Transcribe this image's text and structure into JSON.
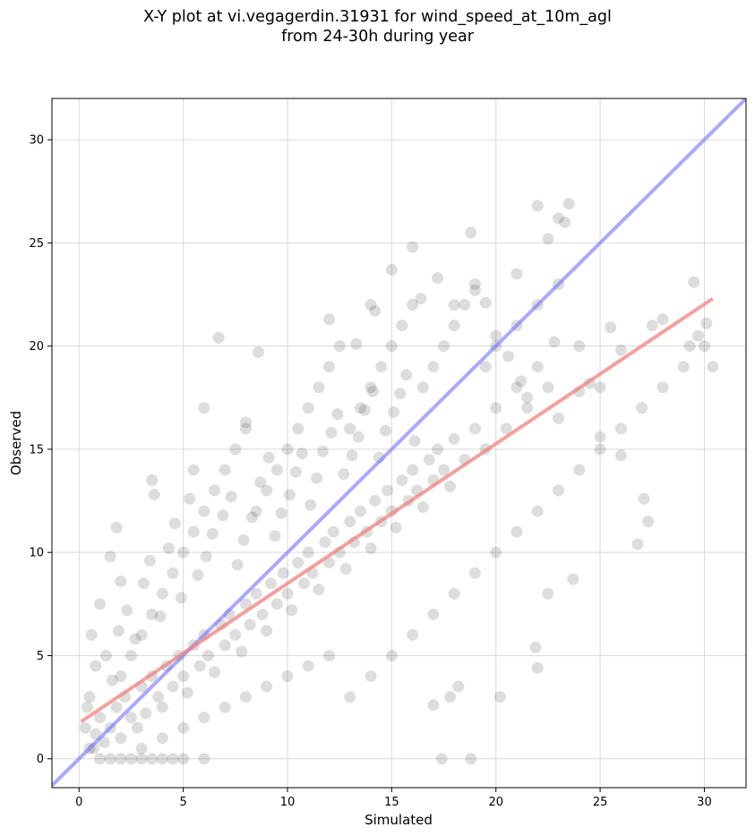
{
  "chart_data": {
    "type": "scatter",
    "title_line1": "X-Y plot at vi.vegagerdin.31931 for wind_speed_at_10m_agl",
    "title_line2": "from 24-30h during year",
    "xlabel": "Simulated",
    "ylabel": "Observed",
    "xlim": [
      -1.3,
      32
    ],
    "ylim": [
      -1.4,
      32
    ],
    "xticks": [
      0,
      5,
      10,
      15,
      20,
      25,
      30
    ],
    "yticks": [
      0,
      5,
      10,
      15,
      20,
      25,
      30
    ],
    "grid": true,
    "point_color": "#000000",
    "point_alpha": 0.06,
    "identity_line": {
      "x": [
        -1.3,
        32
      ],
      "y": [
        -1.3,
        32
      ],
      "color": "#7070ff"
    },
    "regression_line": {
      "x": [
        0.1,
        30.4
      ],
      "y": [
        1.8,
        22.3
      ],
      "color": "#f08080"
    },
    "series": [
      {
        "values": [
          [
            0.5,
            0.5
          ],
          [
            0.8,
            1.2
          ],
          [
            1.0,
            2.0
          ],
          [
            1.2,
            0.8
          ],
          [
            1.5,
            1.5
          ],
          [
            1.8,
            2.5
          ],
          [
            2.0,
            1.0
          ],
          [
            2.2,
            3.0
          ],
          [
            2.5,
            2.0
          ],
          [
            2.8,
            1.5
          ],
          [
            3.0,
            3.5
          ],
          [
            3.2,
            2.2
          ],
          [
            3.5,
            4.0
          ],
          [
            3.8,
            3.0
          ],
          [
            4.0,
            2.5
          ],
          [
            4.2,
            4.5
          ],
          [
            4.5,
            3.5
          ],
          [
            4.8,
            5.0
          ],
          [
            5.0,
            4.0
          ],
          [
            5.2,
            3.2
          ],
          [
            5.5,
            5.5
          ],
          [
            5.8,
            4.5
          ],
          [
            6.0,
            6.0
          ],
          [
            6.2,
            5.0
          ],
          [
            6.5,
            4.2
          ],
          [
            6.8,
            6.5
          ],
          [
            7.0,
            5.5
          ],
          [
            7.2,
            7.0
          ],
          [
            7.5,
            6.0
          ],
          [
            7.8,
            5.2
          ],
          [
            8.0,
            7.5
          ],
          [
            8.2,
            6.5
          ],
          [
            8.5,
            8.0
          ],
          [
            8.8,
            7.0
          ],
          [
            9.0,
            6.2
          ],
          [
            9.2,
            8.5
          ],
          [
            9.5,
            7.5
          ],
          [
            9.8,
            9.0
          ],
          [
            10.0,
            8.0
          ],
          [
            10.2,
            7.2
          ],
          [
            10.5,
            9.5
          ],
          [
            10.8,
            8.5
          ],
          [
            11.0,
            10.0
          ],
          [
            11.2,
            9.0
          ],
          [
            11.5,
            8.2
          ],
          [
            11.8,
            10.5
          ],
          [
            12.0,
            9.5
          ],
          [
            12.2,
            11.0
          ],
          [
            12.5,
            10.0
          ],
          [
            12.8,
            9.2
          ],
          [
            13.0,
            11.5
          ],
          [
            13.2,
            10.5
          ],
          [
            13.5,
            12.0
          ],
          [
            13.8,
            11.0
          ],
          [
            14.0,
            10.2
          ],
          [
            14.2,
            12.5
          ],
          [
            14.5,
            11.5
          ],
          [
            14.8,
            13.0
          ],
          [
            15.0,
            12.0
          ],
          [
            15.2,
            11.2
          ],
          [
            15.5,
            13.5
          ],
          [
            15.8,
            12.5
          ],
          [
            16.0,
            14.0
          ],
          [
            16.2,
            13.0
          ],
          [
            16.5,
            12.2
          ],
          [
            16.8,
            14.5
          ],
          [
            17.0,
            13.5
          ],
          [
            17.2,
            15.0
          ],
          [
            17.5,
            14.0
          ],
          [
            17.8,
            13.2
          ],
          [
            18.0,
            15.5
          ],
          [
            18.5,
            14.5
          ],
          [
            19.0,
            16.0
          ],
          [
            19.5,
            15.0
          ],
          [
            20.0,
            17.0
          ],
          [
            20.5,
            16.0
          ],
          [
            21.0,
            18.0
          ],
          [
            21.5,
            17.0
          ],
          [
            22.0,
            19.0
          ],
          [
            22.5,
            18.0
          ],
          [
            1.0,
            0.0
          ],
          [
            1.5,
            0.0
          ],
          [
            2.0,
            0.0
          ],
          [
            2.5,
            0.0
          ],
          [
            3.0,
            0.0
          ],
          [
            3.5,
            0.0
          ],
          [
            4.0,
            0.0
          ],
          [
            4.5,
            0.0
          ],
          [
            5.0,
            0.0
          ],
          [
            6.0,
            0.0
          ],
          [
            2.0,
            4.0
          ],
          [
            2.5,
            5.0
          ],
          [
            3.0,
            6.0
          ],
          [
            3.5,
            7.0
          ],
          [
            4.0,
            8.0
          ],
          [
            4.5,
            9.0
          ],
          [
            5.0,
            10.0
          ],
          [
            5.5,
            11.0
          ],
          [
            6.0,
            12.0
          ],
          [
            6.5,
            13.0
          ],
          [
            7.0,
            14.0
          ],
          [
            7.5,
            15.0
          ],
          [
            8.0,
            16.0
          ],
          [
            8.5,
            12.0
          ],
          [
            9.0,
            13.0
          ],
          [
            9.5,
            14.0
          ],
          [
            10.0,
            15.0
          ],
          [
            10.5,
            16.0
          ],
          [
            11.0,
            17.0
          ],
          [
            11.5,
            18.0
          ],
          [
            12.0,
            19.0
          ],
          [
            12.5,
            20.0
          ],
          [
            13.0,
            16.0
          ],
          [
            13.5,
            17.0
          ],
          [
            14.0,
            18.0
          ],
          [
            14.5,
            19.0
          ],
          [
            15.0,
            20.0
          ],
          [
            15.5,
            21.0
          ],
          [
            16.0,
            22.0
          ],
          [
            16.5,
            18.0
          ],
          [
            17.0,
            19.0
          ],
          [
            17.5,
            20.0
          ],
          [
            18.0,
            21.0
          ],
          [
            18.5,
            22.0
          ],
          [
            19.0,
            23.0
          ],
          [
            19.5,
            19.0
          ],
          [
            20.0,
            20.0
          ],
          [
            21.0,
            21.0
          ],
          [
            22.0,
            22.0
          ],
          [
            23.0,
            23.0
          ],
          [
            3.0,
            0.5
          ],
          [
            4.0,
            1.0
          ],
          [
            5.0,
            1.5
          ],
          [
            6.0,
            2.0
          ],
          [
            7.0,
            2.5
          ],
          [
            8.0,
            3.0
          ],
          [
            9.0,
            3.5
          ],
          [
            10.0,
            4.0
          ],
          [
            11.0,
            4.5
          ],
          [
            12.0,
            5.0
          ],
          [
            13.0,
            3.0
          ],
          [
            14.0,
            4.0
          ],
          [
            15.0,
            5.0
          ],
          [
            16.0,
            6.0
          ],
          [
            17.0,
            7.0
          ],
          [
            18.0,
            8.0
          ],
          [
            19.0,
            9.0
          ],
          [
            20.0,
            10.0
          ],
          [
            21.0,
            11.0
          ],
          [
            22.0,
            12.0
          ],
          [
            23.0,
            13.0
          ],
          [
            24.0,
            14.0
          ],
          [
            25.0,
            15.0
          ],
          [
            26.0,
            16.0
          ],
          [
            27.0,
            17.0
          ],
          [
            28.0,
            18.0
          ],
          [
            29.0,
            19.0
          ],
          [
            30.0,
            20.0
          ],
          [
            24.0,
            20.0
          ],
          [
            25.0,
            18.0
          ],
          [
            6.7,
            20.4
          ],
          [
            8.6,
            19.7
          ],
          [
            18.8,
            25.5
          ],
          [
            16.0,
            24.8
          ],
          [
            14.0,
            22.0
          ],
          [
            15.0,
            23.7
          ],
          [
            19.0,
            22.7
          ],
          [
            20.0,
            20.5
          ],
          [
            21.0,
            23.5
          ],
          [
            22.0,
            26.8
          ],
          [
            23.0,
            26.2
          ],
          [
            23.5,
            26.9
          ],
          [
            22.5,
            25.2
          ],
          [
            23.3,
            26.0
          ],
          [
            29.5,
            23.1
          ],
          [
            29.7,
            20.5
          ],
          [
            30.4,
            19.0
          ],
          [
            30.1,
            21.1
          ],
          [
            29.3,
            20.0
          ],
          [
            27.3,
            11.5
          ],
          [
            26.8,
            10.4
          ],
          [
            27.1,
            12.6
          ],
          [
            22.5,
            8.0
          ],
          [
            23.7,
            8.7
          ],
          [
            22.0,
            4.4
          ],
          [
            21.9,
            5.4
          ],
          [
            20.2,
            3.0
          ],
          [
            18.8,
            0.0
          ],
          [
            17.4,
            0.0
          ],
          [
            17.0,
            2.6
          ],
          [
            18.2,
            3.5
          ],
          [
            17.8,
            3.0
          ],
          [
            1.8,
            11.2
          ],
          [
            3.5,
            13.5
          ],
          [
            3.6,
            12.8
          ],
          [
            1.5,
            9.8
          ],
          [
            2.0,
            8.6
          ],
          [
            5.5,
            14.0
          ],
          [
            6.0,
            17.0
          ],
          [
            8.0,
            16.3
          ],
          [
            12.0,
            21.3
          ],
          [
            13.3,
            20.1
          ],
          [
            14.2,
            21.7
          ],
          [
            16.4,
            22.3
          ],
          [
            17.2,
            23.3
          ],
          [
            18.0,
            22.0
          ],
          [
            19.5,
            22.1
          ],
          [
            20.6,
            19.5
          ],
          [
            21.2,
            18.3
          ],
          [
            22.8,
            20.2
          ],
          [
            25.0,
            15.6
          ],
          [
            26.0,
            14.7
          ],
          [
            24.5,
            18.2
          ],
          [
            25.5,
            20.9
          ],
          [
            26.0,
            19.8
          ],
          [
            28.0,
            21.3
          ],
          [
            27.5,
            21.0
          ],
          [
            24.0,
            17.8
          ],
          [
            23.0,
            16.5
          ],
          [
            21.5,
            17.5
          ],
          [
            0.5,
            3.0
          ],
          [
            0.8,
            4.5
          ],
          [
            0.6,
            6.0
          ],
          [
            1.0,
            7.5
          ],
          [
            0.4,
            2.5
          ],
          [
            0.3,
            1.5
          ],
          [
            0.7,
            0.5
          ],
          [
            1.3,
            5.0
          ],
          [
            1.6,
            3.8
          ],
          [
            1.9,
            6.2
          ],
          [
            2.3,
            7.2
          ],
          [
            2.7,
            5.8
          ],
          [
            3.1,
            8.5
          ],
          [
            3.4,
            9.6
          ],
          [
            3.9,
            6.9
          ],
          [
            4.3,
            10.2
          ],
          [
            4.6,
            11.4
          ],
          [
            4.9,
            7.8
          ],
          [
            5.3,
            12.6
          ],
          [
            5.7,
            8.9
          ],
          [
            6.1,
            9.8
          ],
          [
            6.4,
            10.9
          ],
          [
            6.9,
            11.8
          ],
          [
            7.3,
            12.7
          ],
          [
            7.6,
            9.4
          ],
          [
            7.9,
            10.6
          ],
          [
            8.3,
            11.7
          ],
          [
            8.7,
            13.4
          ],
          [
            9.1,
            14.6
          ],
          [
            9.4,
            10.8
          ],
          [
            9.7,
            11.9
          ],
          [
            10.1,
            12.8
          ],
          [
            10.4,
            13.9
          ],
          [
            10.7,
            14.8
          ],
          [
            11.1,
            12.3
          ],
          [
            11.4,
            13.6
          ],
          [
            11.7,
            14.9
          ],
          [
            12.1,
            15.8
          ],
          [
            12.4,
            16.7
          ],
          [
            12.7,
            13.8
          ],
          [
            13.1,
            14.7
          ],
          [
            13.4,
            15.6
          ],
          [
            13.7,
            16.9
          ],
          [
            14.1,
            17.8
          ],
          [
            14.4,
            14.6
          ],
          [
            14.7,
            15.9
          ],
          [
            15.1,
            16.8
          ],
          [
            15.4,
            17.7
          ],
          [
            15.7,
            18.6
          ],
          [
            16.1,
            15.4
          ]
        ]
      }
    ]
  }
}
